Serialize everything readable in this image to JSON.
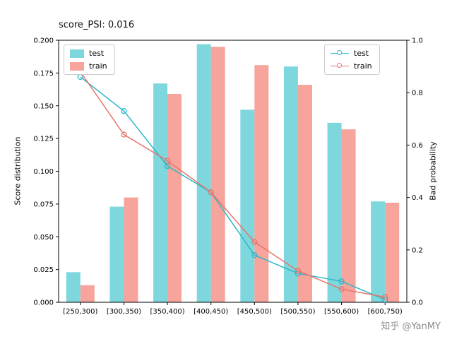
{
  "chart_data": {
    "type": "bar+line",
    "title": "score_PSI: 0.016",
    "categories": [
      "[250,300)",
      "[300,350)",
      "[350,400)",
      "[400,450)",
      "[450,500)",
      "[500,550)",
      "[550,600)",
      "[600,750)"
    ],
    "bar_series": [
      {
        "name": "test",
        "color": "#7ed7dd",
        "values": [
          0.023,
          0.073,
          0.167,
          0.197,
          0.147,
          0.18,
          0.137,
          0.077
        ]
      },
      {
        "name": "train",
        "color": "#f6a49c",
        "values": [
          0.013,
          0.08,
          0.159,
          0.195,
          0.181,
          0.166,
          0.132,
          0.076
        ]
      }
    ],
    "line_series": [
      {
        "name": "test",
        "color": "#2cb8c8",
        "values": [
          0.86,
          0.73,
          0.52,
          0.42,
          0.18,
          0.11,
          0.08,
          0.01
        ]
      },
      {
        "name": "train",
        "color": "#e8756b",
        "values": [
          0.88,
          0.64,
          0.54,
          0.42,
          0.23,
          0.12,
          0.05,
          0.02
        ]
      }
    ],
    "ylabel_left": "Score distribution",
    "ylabel_right": "Bad probability",
    "yticks_left": [
      "0.000",
      "0.025",
      "0.050",
      "0.075",
      "0.100",
      "0.125",
      "0.150",
      "0.175",
      "0.200"
    ],
    "yticks_right": [
      "0.0",
      "0.2",
      "0.4",
      "0.6",
      "0.8",
      "1.0"
    ],
    "ylim_left": [
      0,
      0.2
    ],
    "ylim_right": [
      0,
      1.0
    ],
    "grid": false,
    "legend_left_position": "upper left",
    "legend_right_position": "upper right"
  },
  "watermark": "知乎 @YanMY"
}
